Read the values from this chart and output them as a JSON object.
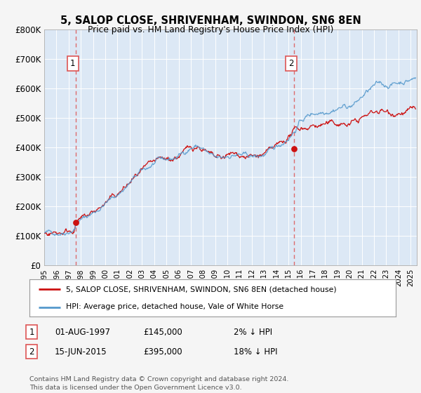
{
  "title": "5, SALOP CLOSE, SHRIVENHAM, SWINDON, SN6 8EN",
  "subtitle": "Price paid vs. HM Land Registry's House Price Index (HPI)",
  "ylim": [
    0,
    800000
  ],
  "yticks": [
    0,
    100000,
    200000,
    300000,
    400000,
    500000,
    600000,
    700000,
    800000
  ],
  "ytick_labels": [
    "£0",
    "£100K",
    "£200K",
    "£300K",
    "£400K",
    "£500K",
    "£600K",
    "£700K",
    "£800K"
  ],
  "hpi_color": "#5599cc",
  "price_color": "#cc1111",
  "dashed_color": "#dd5555",
  "marker1_date": 1997.6,
  "marker1_price": 145000,
  "marker2_date": 2015.45,
  "marker2_price": 395000,
  "legend_line1": "5, SALOP CLOSE, SHRIVENHAM, SWINDON, SN6 8EN (detached house)",
  "legend_line2": "HPI: Average price, detached house, Vale of White Horse",
  "footer": "Contains HM Land Registry data © Crown copyright and database right 2024.\nThis data is licensed under the Open Government Licence v3.0.",
  "bg_color": "#f5f5f5",
  "plot_bg_color": "#dce8f5",
  "xmin": 1995.0,
  "xmax": 2025.5
}
